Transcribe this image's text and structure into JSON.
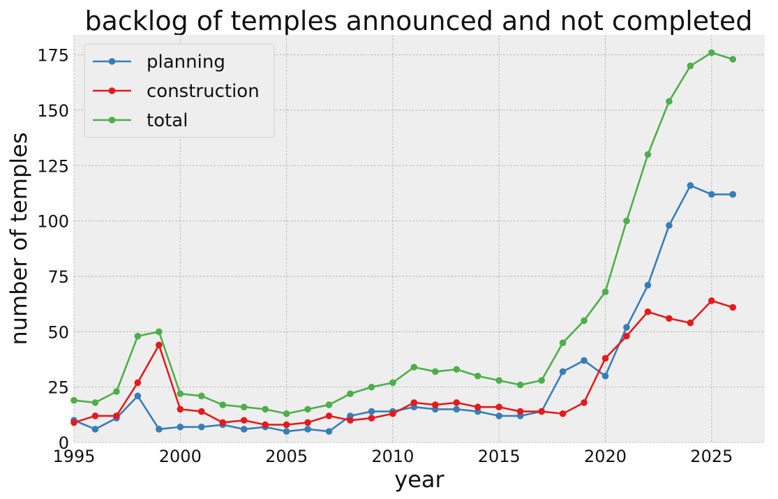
{
  "chart_data": {
    "type": "line",
    "title": "backlog of temples announced and not completed",
    "xlabel": "year",
    "ylabel": "number of temples",
    "xlim": [
      1995,
      2027.5
    ],
    "ylim": [
      0,
      184
    ],
    "xticks": [
      1995,
      2000,
      2005,
      2010,
      2015,
      2020,
      2025
    ],
    "yticks": [
      0,
      25,
      50,
      75,
      100,
      125,
      150,
      175
    ],
    "grid": true,
    "legend_position": "top-left",
    "x": [
      1995,
      1996,
      1997,
      1998,
      1999,
      2000,
      2001,
      2002,
      2003,
      2004,
      2005,
      2006,
      2007,
      2008,
      2009,
      2010,
      2011,
      2012,
      2013,
      2014,
      2015,
      2016,
      2017,
      2018,
      2019,
      2020,
      2021,
      2022,
      2023,
      2024,
      2025,
      2026
    ],
    "series": [
      {
        "name": "planning",
        "color": "#377eb8",
        "values": [
          10,
          6,
          11,
          21,
          6,
          7,
          7,
          8,
          6,
          7,
          5,
          6,
          5,
          12,
          14,
          14,
          16,
          15,
          15,
          14,
          12,
          12,
          14,
          32,
          37,
          30,
          52,
          71,
          98,
          116,
          112,
          112
        ]
      },
      {
        "name": "construction",
        "color": "#e41a1c",
        "values": [
          9,
          12,
          12,
          27,
          44,
          15,
          14,
          9,
          10,
          8,
          8,
          9,
          12,
          10,
          11,
          13,
          18,
          17,
          18,
          16,
          16,
          14,
          14,
          13,
          18,
          38,
          48,
          59,
          56,
          54,
          64,
          61
        ]
      },
      {
        "name": "total",
        "color": "#4daf4a",
        "values": [
          19,
          18,
          23,
          48,
          50,
          22,
          21,
          17,
          16,
          15,
          13,
          15,
          17,
          22,
          25,
          27,
          34,
          32,
          33,
          30,
          28,
          26,
          28,
          45,
          55,
          68,
          100,
          130,
          154,
          170,
          176,
          173
        ]
      }
    ]
  }
}
